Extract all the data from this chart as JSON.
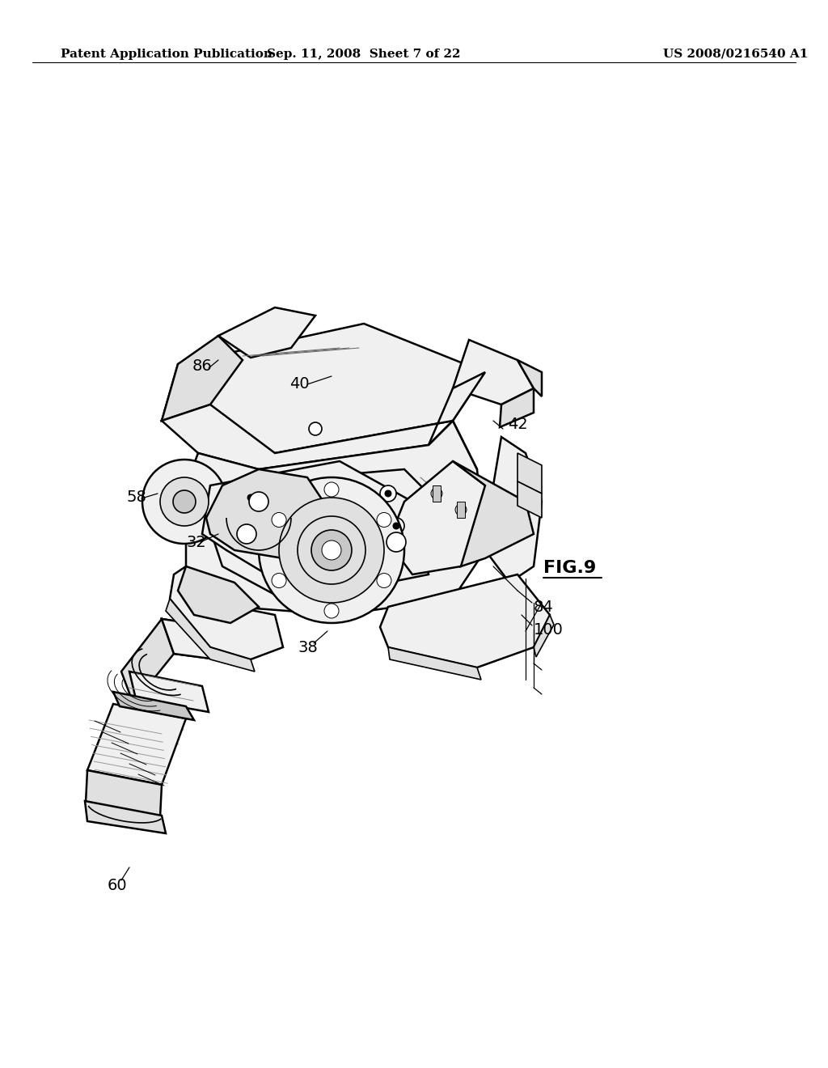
{
  "background_color": "#ffffff",
  "header_left": "Patent Application Publication",
  "header_center": "Sep. 11, 2008  Sheet 7 of 22",
  "header_right": "US 2008/0216540 A1",
  "header_fontsize": 11,
  "fig_label": "FIG.9",
  "fig_label_fontsize": 16,
  "label_fontsize": 14,
  "lw_main": 1.8,
  "lw_med": 1.2,
  "lw_thin": 0.7,
  "fc_white": "#ffffff",
  "fc_light": "#f0f0f0",
  "fc_mid": "#e0e0e0",
  "fc_dark": "#c8c8c8"
}
